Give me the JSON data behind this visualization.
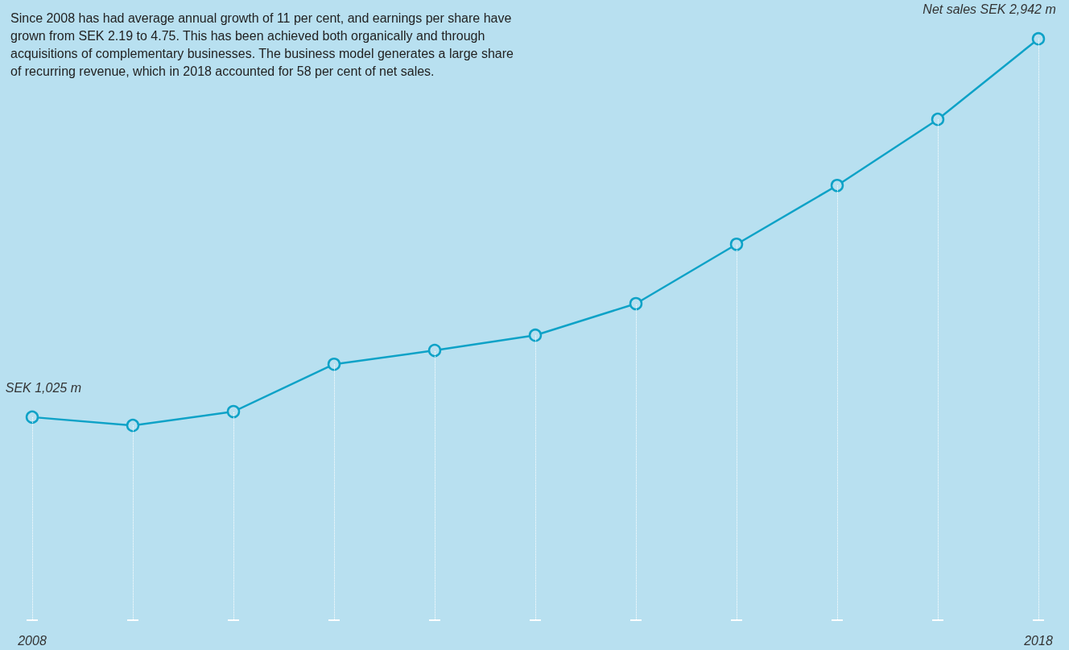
{
  "chart_data": {
    "type": "line",
    "annotations": [
      "Since 2008 has had average annual growth of 11 per cent, and earnings per share have grown from SEK 2.19 to 4.75. This has been achieved both organically and through acquisitions of complementary businesses. The business model generates a large share of recurring revenue, which in 2018 accounted for 58 per cent of net sales."
    ],
    "categories": [
      "2008",
      null,
      null,
      null,
      null,
      null,
      null,
      null,
      null,
      null,
      "2018"
    ],
    "series": [
      {
        "color": "#0ea2c7",
        "values": [
          1025,
          983,
          1053,
          1293,
          1363,
          1440,
          1600,
          1901,
          2199,
          2534,
          2942
        ],
        "value_labels": [
          "SEK 1,025 m",
          null,
          null,
          null,
          null,
          null,
          null,
          null,
          null,
          null,
          "Net sales SEK 2,942 m"
        ]
      }
    ],
    "marker": "circle",
    "line_style": "solid",
    "grid": "x"
  }
}
